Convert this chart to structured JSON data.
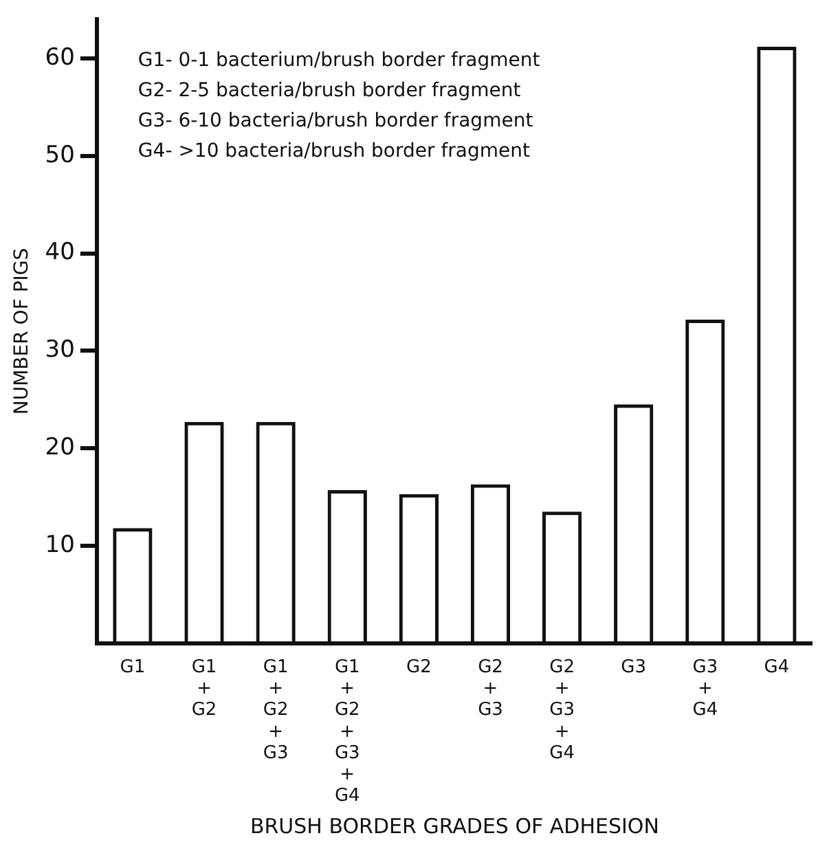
{
  "chart_data": {
    "type": "bar",
    "categories": [
      "G1",
      "G1\n+\nG2",
      "G1\n+\nG2\n+\nG3",
      "G1\n+\nG2\n+\nG3\n+\nG4",
      "G2",
      "G2\n+\nG3",
      "G2\n+\nG3\n+\nG4",
      "G3",
      "G3\n+\nG4",
      "G4"
    ],
    "values": [
      11.8,
      22.7,
      22.7,
      15.7,
      15.3,
      16.3,
      13.5,
      24.5,
      33.2,
      61.2
    ],
    "color": "#111111",
    "xlabel": "BRUSH BORDER GRADES OF ADHESION",
    "ylabel": "NUMBER OF PIGS",
    "ylim": [
      0,
      64
    ],
    "yticks": [
      10,
      20,
      30,
      40,
      50,
      60
    ],
    "grid": false,
    "legend": false,
    "annotations": [
      "G1- 0-1 bacterium/brush border fragment",
      "G2- 2-5 bacteria/brush border fragment",
      "G3- 6-10 bacteria/brush border fragment",
      "G4- >10 bacteria/brush border fragment"
    ]
  }
}
